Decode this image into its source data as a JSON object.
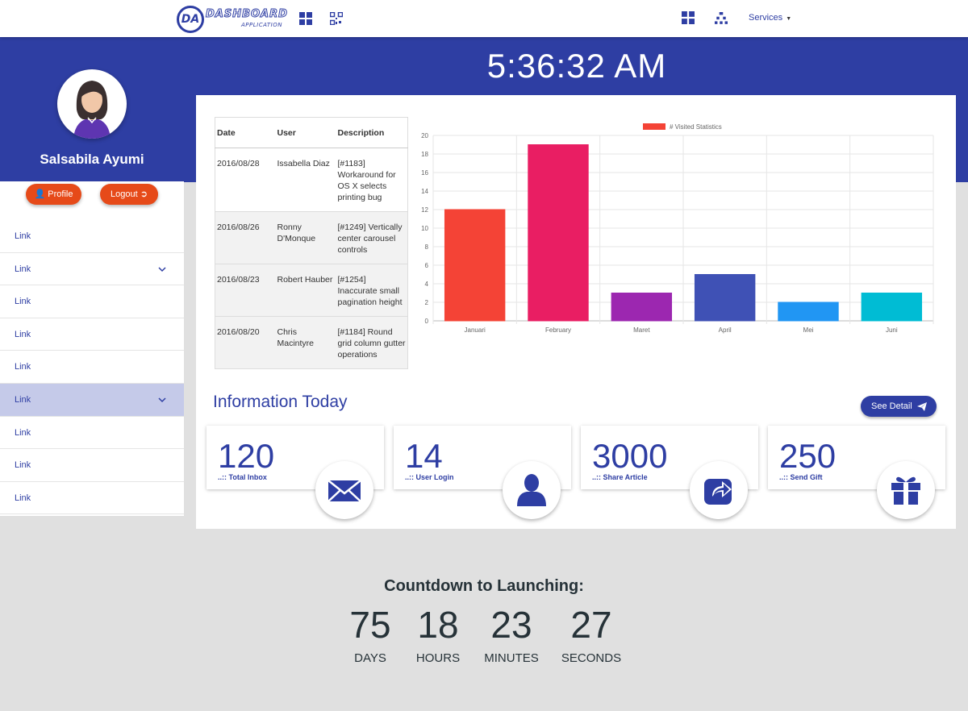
{
  "nav": {
    "logo_initials": "DA",
    "logo_title": "DASHBOARD",
    "logo_subtitle": "APPLICATION",
    "services_label": "Services",
    "icons": [
      "grid-icon",
      "qr-icon",
      "apps-icon",
      "sitemap-icon"
    ]
  },
  "clock": "5:36:32 AM",
  "user": {
    "name": "Salsabila Ayumi",
    "profile_label": "Profile",
    "logout_label": "Logout"
  },
  "sidebar": {
    "items": [
      {
        "label": "Link",
        "dropdown": false,
        "active": false
      },
      {
        "label": "Link",
        "dropdown": true,
        "active": false
      },
      {
        "label": "Link",
        "dropdown": false,
        "active": false
      },
      {
        "label": "Link",
        "dropdown": false,
        "active": false
      },
      {
        "label": "Link",
        "dropdown": false,
        "active": false
      },
      {
        "label": "Link",
        "dropdown": true,
        "active": true
      },
      {
        "label": "Link",
        "dropdown": false,
        "active": false
      },
      {
        "label": "Link",
        "dropdown": false,
        "active": false
      },
      {
        "label": "Link",
        "dropdown": false,
        "active": false
      }
    ]
  },
  "activity": {
    "headers": [
      "Date",
      "User",
      "Description"
    ],
    "rows": [
      [
        "2016/08/28",
        "Issabella Diaz",
        "[#1183] Workaround for OS X selects printing bug"
      ],
      [
        "2016/08/26",
        "Ronny D'Monque",
        "[#1249] Vertically center carousel controls"
      ],
      [
        "2016/08/23",
        "Robert Hauber",
        "[#1254] Inaccurate small pagination height"
      ],
      [
        "2016/08/20",
        "Chris Macintyre",
        "[#1184] Round grid column gutter operations"
      ]
    ]
  },
  "chart_data": {
    "type": "bar",
    "categories": [
      "Januari",
      "February",
      "Maret",
      "April",
      "Mei",
      "Juni"
    ],
    "series": [
      {
        "name": "# Visited Statistics",
        "values": [
          12,
          19,
          3,
          5,
          2,
          3
        ]
      }
    ],
    "colors": [
      "#f44336",
      "#e91e63",
      "#9c27b0",
      "#3f51b5",
      "#2196f3",
      "#00bcd4"
    ],
    "ylim": [
      0,
      20
    ],
    "yticks": [
      0,
      2,
      4,
      6,
      8,
      10,
      12,
      14,
      16,
      18,
      20
    ],
    "grid": true,
    "legend_position": "top"
  },
  "info": {
    "title": "Information Today",
    "see_detail_label": "See Detail",
    "stats": [
      {
        "value": "120",
        "label": "..:: Total Inbox",
        "icon": "envelope-icon"
      },
      {
        "value": "14",
        "label": "..:: User Login",
        "icon": "user-icon"
      },
      {
        "value": "3000",
        "label": "..:: Share Article",
        "icon": "share-icon"
      },
      {
        "value": "250",
        "label": "..:: Send Gift",
        "icon": "gift-icon"
      }
    ]
  },
  "countdown": {
    "title": "Countdown to Launching:",
    "blocks": [
      {
        "value": "75",
        "unit": "DAYS"
      },
      {
        "value": "18",
        "unit": "HOURS"
      },
      {
        "value": "23",
        "unit": "MINUTES"
      },
      {
        "value": "27",
        "unit": "SECONDS"
      }
    ]
  },
  "colors": {
    "primary": "#2e3ea3",
    "accent": "#e64a19",
    "active_row": "#c5cae9",
    "background": "#e0e0e0"
  }
}
